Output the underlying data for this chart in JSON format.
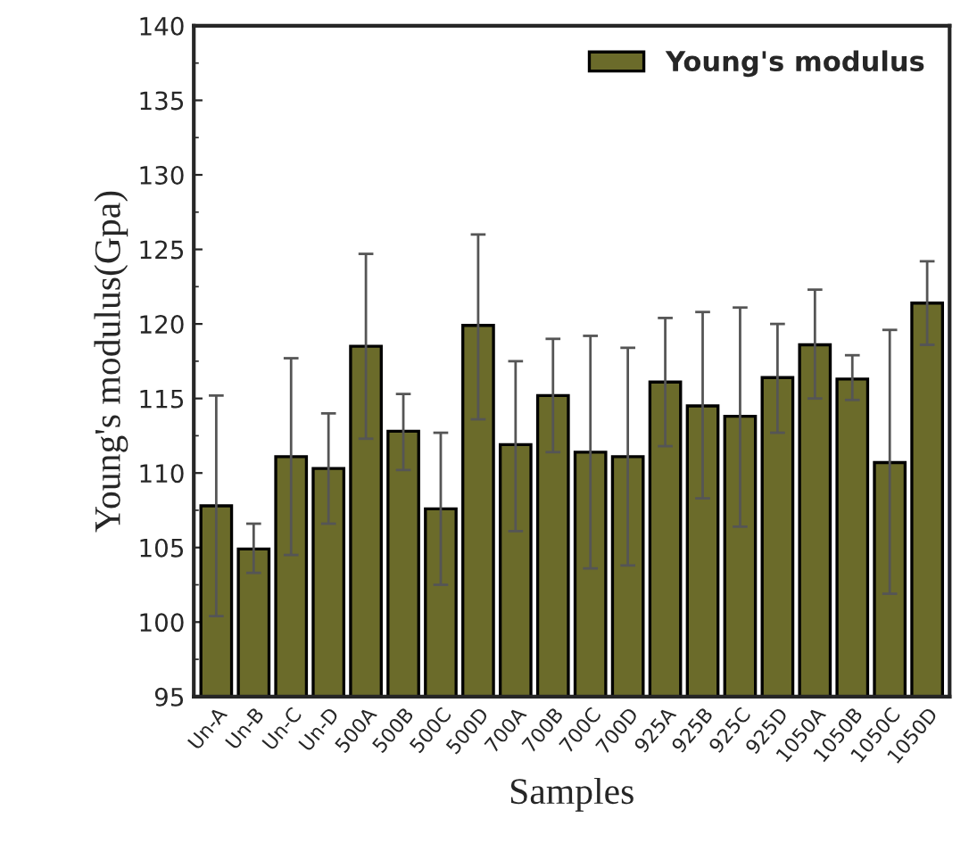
{
  "chart_data": {
    "type": "bar",
    "xlabel": "Samples",
    "ylabel": "Young's modulus(Gpa)",
    "categories": [
      "Un-A",
      "Un-B",
      "Un-C",
      "Un-D",
      "500A",
      "500B",
      "500C",
      "500D",
      "700A",
      "700B",
      "700C",
      "700D",
      "925A",
      "925B",
      "925C",
      "925D",
      "1050A",
      "1050B",
      "1050C",
      "1050D"
    ],
    "series": [
      {
        "name": "Young's modulus",
        "color": "#6b6b2a",
        "values": [
          107.8,
          104.9,
          111.1,
          110.3,
          118.5,
          112.8,
          107.6,
          119.9,
          111.9,
          115.2,
          111.4,
          111.1,
          116.1,
          114.5,
          113.8,
          116.4,
          118.6,
          116.3,
          110.7,
          121.4
        ],
        "errors": [
          [
            100.4,
            115.2
          ],
          [
            103.3,
            106.6
          ],
          [
            104.5,
            117.7
          ],
          [
            106.6,
            114.0
          ],
          [
            112.3,
            124.7
          ],
          [
            110.2,
            115.3
          ],
          [
            102.5,
            112.7
          ],
          [
            113.6,
            126.0
          ],
          [
            106.1,
            117.5
          ],
          [
            111.4,
            119.0
          ],
          [
            103.6,
            119.2
          ],
          [
            103.8,
            118.4
          ],
          [
            111.8,
            120.4
          ],
          [
            108.3,
            120.8
          ],
          [
            106.4,
            121.1
          ],
          [
            112.7,
            120.0
          ],
          [
            115.0,
            122.3
          ],
          [
            114.9,
            117.9
          ],
          [
            101.9,
            119.6
          ],
          [
            118.6,
            124.2
          ]
        ]
      }
    ],
    "ylim": [
      95,
      140
    ],
    "yticks": [
      95,
      100,
      105,
      110,
      115,
      120,
      125,
      130,
      135,
      140
    ],
    "legend": "top right",
    "grid": false
  }
}
